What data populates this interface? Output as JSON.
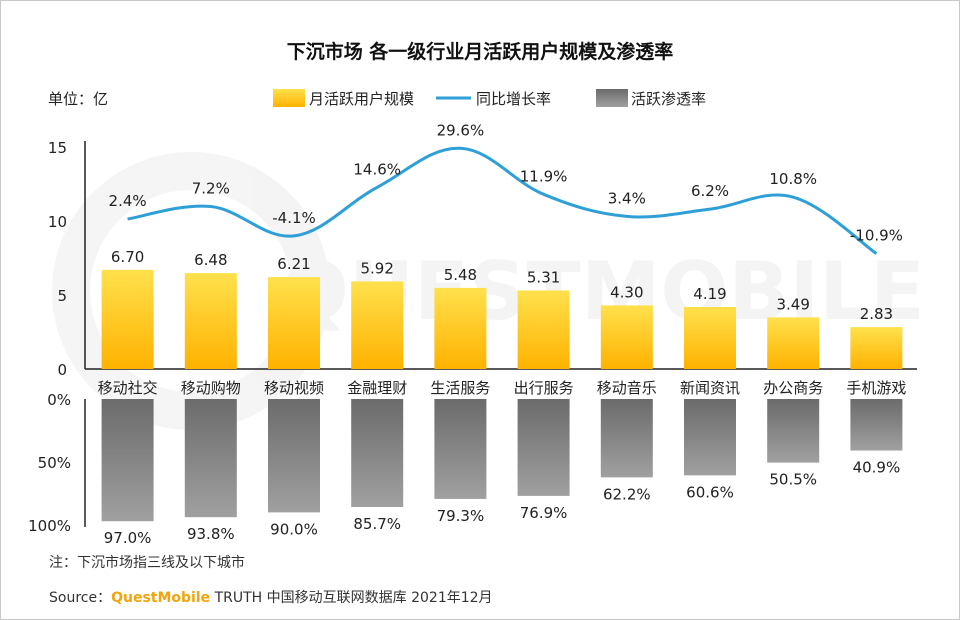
{
  "chart_data": {
    "type": "bar",
    "title": "下沉市场 各一级行业月活跃用户规模及渗透率",
    "unit_label": "单位：亿",
    "categories": [
      "移动社交",
      "移动购物",
      "移动视频",
      "金融理财",
      "生活服务",
      "出行服务",
      "移动音乐",
      "新闻资讯",
      "办公商务",
      "手机游戏"
    ],
    "series": [
      {
        "name": "月活跃用户规模",
        "type": "bar",
        "values": [
          6.7,
          6.48,
          6.21,
          5.92,
          5.48,
          5.31,
          4.3,
          4.19,
          3.49,
          2.83
        ],
        "labels": [
          "6.70",
          "6.48",
          "6.21",
          "5.92",
          "5.48",
          "5.31",
          "4.30",
          "4.19",
          "3.49",
          "2.83"
        ]
      },
      {
        "name": "同比增长率",
        "type": "line",
        "values": [
          2.4,
          7.2,
          -4.1,
          14.6,
          29.6,
          11.9,
          3.4,
          6.2,
          10.8,
          -10.9
        ],
        "labels": [
          "2.4%",
          "7.2%",
          "-4.1%",
          "14.6%",
          "29.6%",
          "11.9%",
          "3.4%",
          "6.2%",
          "10.8%",
          "-10.9%"
        ]
      },
      {
        "name": "活跃渗透率",
        "type": "bar",
        "values": [
          97.0,
          93.8,
          90.0,
          85.7,
          79.3,
          76.9,
          62.2,
          60.6,
          50.5,
          40.9
        ],
        "labels": [
          "97.0%",
          "93.8%",
          "90.0%",
          "85.7%",
          "79.3%",
          "76.9%",
          "62.2%",
          "60.6%",
          "50.5%",
          "40.9%"
        ]
      }
    ],
    "y_axis": {
      "ylim": [
        0,
        15
      ],
      "ticks": [
        "0",
        "5",
        "10",
        "15"
      ]
    },
    "penetration_axis": {
      "ylim": [
        0,
        100
      ],
      "ticks": [
        "0%",
        "50%",
        "100%"
      ]
    },
    "legend_position": "top",
    "colors": {
      "bar_top": "#ffe14d",
      "bar_bottom": "#ffb200",
      "line": "#2f9fd7",
      "pen_top": "#6b6b6b",
      "pen_bottom": "#a0a0a0",
      "axis": "#222222"
    }
  },
  "watermark": "QUESTMOBILE",
  "footer": {
    "note": "注：下沉市场指三线及以下城市",
    "source_label": "Source：",
    "source_brand": "QuestMobile",
    "source_rest": " TRUTH 中国移动互联网数据库 2021年12月"
  }
}
